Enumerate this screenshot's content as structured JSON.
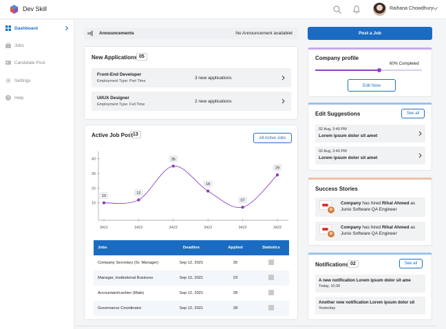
{
  "app": {
    "name": "Dev Skill"
  },
  "user": {
    "name": "Raihana Chowdhury"
  },
  "sidebar": {
    "items": [
      {
        "label": "Dashboard",
        "icon": "grid-icon",
        "active": true
      },
      {
        "label": "Jobs",
        "icon": "briefcase-icon"
      },
      {
        "label": "Candidate Pool",
        "icon": "users-icon"
      },
      {
        "label": "Settings",
        "icon": "gear-icon"
      },
      {
        "label": "Help",
        "icon": "help-icon"
      }
    ]
  },
  "announcements": {
    "title": "Announcements",
    "status": "No Announcement availablet"
  },
  "new_applications": {
    "title": "New Applications",
    "count": "05",
    "items": [
      {
        "job": "Front-End Developer",
        "type": "Employment Type: Part Time",
        "applications": "3 new applications"
      },
      {
        "job": "UI/UX Designer",
        "type": "Employment Type: Full Time",
        "applications": "2 new applications"
      }
    ]
  },
  "active_jobs": {
    "title": "Active Job Post",
    "count": "13",
    "button": "All Active Jobs",
    "table": {
      "headers": [
        "Jobs",
        "Deadline",
        "Applied",
        "Statistics"
      ],
      "rows": [
        {
          "job": "Company Secretary (Sr. Manager)",
          "deadline": "Sep 12, 2021",
          "applied": "35"
        },
        {
          "job": "Manager, Institutional Business",
          "deadline": "Sep 12, 2021",
          "applied": "23"
        },
        {
          "job": "Accountant/cashier (Male)",
          "deadline": "Sep 12, 2021",
          "applied": "28"
        },
        {
          "job": "Governance Coordinator",
          "deadline": "Sep 12, 2021",
          "applied": "28"
        }
      ]
    }
  },
  "chart_data": {
    "type": "line",
    "x": [
      "3421",
      "3422",
      "3422",
      "3422",
      "3422",
      "3422"
    ],
    "series": [
      {
        "values": [
          10,
          12,
          35,
          18,
          7,
          29
        ]
      }
    ],
    "data_labels": [
      "10",
      "12",
      "35",
      "18",
      "07",
      "29"
    ],
    "yticks": [
      10,
      20,
      30,
      40
    ],
    "ylim": [
      0,
      45
    ],
    "color": "#8c3fc4"
  },
  "post_job": {
    "label": "Post a Job"
  },
  "company_profile": {
    "title": "Company profile",
    "progress": 0.6,
    "progress_label": "60% Completed",
    "button": "Edit Now"
  },
  "edit_suggestions": {
    "title": "Edit Suggestions",
    "button": "See all",
    "items": [
      {
        "date": "02 Aug, 3:40 PM",
        "text": "Lorem ipsum dolor sit amet"
      },
      {
        "date": "02 Aug, 3:40 PM",
        "text": "Lorem ipsum dolor sit amet"
      }
    ]
  },
  "success_stories": {
    "title": "Success Stories",
    "items": [
      {
        "company": "Company",
        "mid": " has hired ",
        "person": "Rihal Ahmed",
        "rest": " as Junio Software QA Engineer"
      },
      {
        "company": "Company",
        "mid": " has hired ",
        "person": "Rihal Ahmed",
        "rest": " as Junio Software QA Engineer"
      }
    ]
  },
  "notifications": {
    "title": "Notifications",
    "count": "02",
    "button": "See all",
    "items": [
      {
        "text": "A new notification Lorem ipsum dolor sit ame",
        "time": "Today, 10:30"
      },
      {
        "text": "Another new notification Lorem ipsum dolor sit",
        "time": "Yesterday"
      }
    ]
  },
  "colors": {
    "primary": "#1a6cc2",
    "accent": "#8c3fc4"
  }
}
